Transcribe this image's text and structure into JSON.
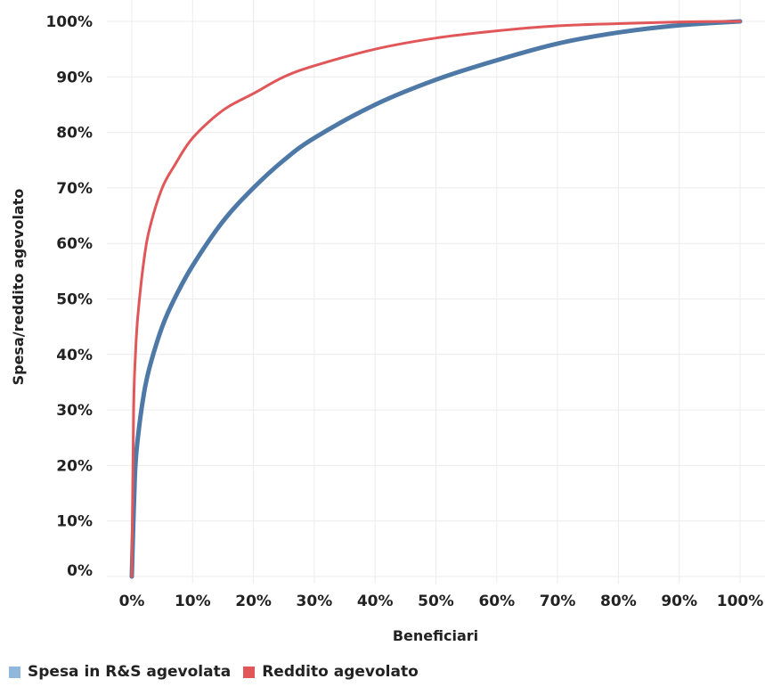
{
  "chart_data": {
    "type": "line",
    "xlabel": "Beneficiari",
    "ylabel": "Spesa/reddito agevolato",
    "xlim": [
      0,
      100
    ],
    "ylim": [
      0,
      100
    ],
    "x_ticks": [
      "0%",
      "10%",
      "20%",
      "30%",
      "40%",
      "50%",
      "60%",
      "70%",
      "80%",
      "90%",
      "100%"
    ],
    "y_ticks": [
      "0%",
      "10%",
      "20%",
      "30%",
      "40%",
      "50%",
      "60%",
      "70%",
      "80%",
      "90%",
      "100%"
    ],
    "grid": true,
    "legend": "bottom-left",
    "series": [
      {
        "name": "Spesa in R&S agevolata",
        "color": "#4e79a7",
        "legend_color": "#8fb8dc",
        "x": [
          0,
          0.5,
          1,
          2,
          3,
          5,
          7,
          10,
          15,
          20,
          25,
          30,
          40,
          50,
          60,
          70,
          80,
          90,
          100
        ],
        "y": [
          0,
          18,
          25,
          33,
          38,
          45,
          50,
          56,
          64,
          70,
          75,
          79,
          85,
          89.5,
          93,
          96,
          98,
          99.3,
          100
        ]
      },
      {
        "name": "Reddito agevolato",
        "color": "#e15759",
        "legend_color": "#e15759",
        "x": [
          0,
          0.3,
          0.6,
          1,
          2,
          3,
          5,
          7,
          10,
          15,
          20,
          25,
          30,
          40,
          50,
          60,
          70,
          80,
          90,
          100
        ],
        "y": [
          0,
          30,
          40,
          47,
          57,
          63,
          70,
          74,
          79,
          84,
          87,
          90,
          92,
          95,
          97,
          98.3,
          99.2,
          99.6,
          99.9,
          100
        ]
      }
    ]
  }
}
